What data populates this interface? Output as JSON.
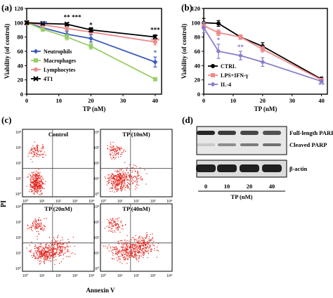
{
  "panel_labels": {
    "a": "(a)",
    "b": "(b)",
    "c": "(c)",
    "d": "(d)"
  },
  "chart_data": [
    {
      "type": "line",
      "panel": "(a)",
      "xlabel": "TP (nM)",
      "ylabel": "Viability (of control)",
      "xlim": [
        0,
        42
      ],
      "ylim": [
        0,
        120
      ],
      "xticks": [
        0,
        10,
        20,
        30,
        40
      ],
      "yticks": [
        0,
        20,
        40,
        60,
        80,
        100,
        120
      ],
      "x": [
        0,
        5,
        12.5,
        20,
        40
      ],
      "legend_position": "bottom-left",
      "series": [
        {
          "name": "Neutrophils",
          "color": "#3a5bbf",
          "marker": "diamond",
          "values": [
            100,
            93,
            84,
            78,
            45
          ],
          "err": [
            3,
            4,
            4,
            5,
            7
          ]
        },
        {
          "name": "Macrophages",
          "color": "#9acd6a",
          "marker": "square",
          "values": [
            100,
            91,
            80,
            67,
            21
          ],
          "err": [
            3,
            3,
            4,
            4,
            2
          ]
        },
        {
          "name": "Lymphocytes",
          "color": "#ee8a8a",
          "marker": "circle",
          "values": [
            100,
            97,
            92,
            87,
            73
          ],
          "err": [
            3,
            3,
            3,
            3,
            4
          ]
        },
        {
          "name": "4T1",
          "color": "#000000",
          "marker": "cross",
          "values": [
            100,
            99,
            98,
            90,
            80
          ],
          "err": [
            2,
            2,
            2,
            3,
            3
          ]
        }
      ],
      "annotations": [
        {
          "text": "**",
          "x": 12.5,
          "y": 105,
          "color": "#000000"
        },
        {
          "text": "***",
          "x": 15.5,
          "y": 105,
          "color": "#000000"
        },
        {
          "text": "**",
          "x": 5.5,
          "y": 96,
          "color": "#3a5bbf"
        },
        {
          "text": "*",
          "x": 20,
          "y": 94,
          "color": "#000000"
        },
        {
          "text": "***",
          "x": 40,
          "y": 87,
          "color": "#000000"
        },
        {
          "text": "***",
          "x": 40,
          "y": 72,
          "color": "#ee8a8a"
        },
        {
          "text": "*",
          "x": 40,
          "y": 55,
          "color": "#3a5bbf"
        }
      ]
    },
    {
      "type": "line",
      "panel": "(b)",
      "xlabel": "TP (nM)",
      "ylabel": "Viability (of control)",
      "xlim": [
        0,
        42
      ],
      "ylim": [
        0,
        120
      ],
      "xticks": [
        0,
        10,
        20,
        30,
        40
      ],
      "yticks": [
        0,
        20,
        40,
        60,
        80,
        100,
        120
      ],
      "x": [
        0,
        5,
        12.5,
        20,
        40
      ],
      "legend_position": "bottom-left",
      "series": [
        {
          "name": "CTRL",
          "color": "#000000",
          "marker": "circle",
          "values": [
            100,
            99,
            80,
            67,
            21
          ],
          "err": [
            6,
            4,
            3,
            5,
            3
          ]
        },
        {
          "name": "LPS+IFN-γ",
          "color": "#ee8a8a",
          "marker": "square",
          "values": [
            96,
            86,
            80,
            63,
            20
          ],
          "err": [
            5,
            4,
            3,
            4,
            2
          ]
        },
        {
          "name": "IL-4",
          "color": "#8a7cc9",
          "marker": "diamond",
          "values": [
            93,
            60,
            54,
            45,
            18
          ],
          "err": [
            7,
            10,
            6,
            6,
            2
          ]
        }
      ],
      "annotations": [
        {
          "text": "*",
          "x": 5,
          "y": 73,
          "color": "#8a7cc9"
        },
        {
          "text": "**",
          "x": 12.5,
          "y": 63,
          "color": "#8a7cc9"
        },
        {
          "text": "**",
          "x": 40,
          "y": 10,
          "color": "#8a7cc9"
        }
      ]
    }
  ],
  "flow": {
    "xlabel": "Annexin V",
    "ylabel": "PI",
    "ticks": [
      "10⁰",
      "10¹",
      "10²",
      "10³",
      "10⁴"
    ],
    "plots": [
      {
        "title": "Control",
        "shift": 0
      },
      {
        "title": "TP (10nM)",
        "shift": 1
      },
      {
        "title": "TP (20nM)",
        "shift": 2
      },
      {
        "title": "TP (40nM)",
        "shift": 3
      }
    ]
  },
  "western": {
    "bands": [
      {
        "label": "Full-length PARP"
      },
      {
        "label": "Cleaved PARP"
      },
      {
        "label": "β-actin"
      }
    ],
    "lanes": [
      "0",
      "10",
      "20",
      "40"
    ],
    "xlabel": "TP  (nM)"
  }
}
